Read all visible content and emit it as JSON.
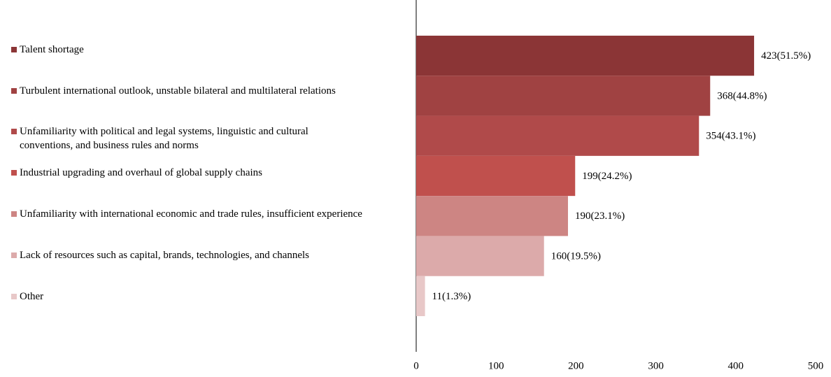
{
  "chart_data": {
    "type": "bar",
    "orientation": "horizontal",
    "categories": [
      "Talent shortage",
      "Turbulent international outlook, unstable bilateral and multilateral relations",
      "Unfamiliarity with political and legal systems, linguistic and cultural conventions, and business rules and norms",
      "Industrial upgrading and overhaul of global supply chains",
      "Unfamiliarity with international economic and trade rules, insufficient experience",
      "Lack of resources such as capital, brands, technologies, and channels",
      "Other"
    ],
    "values": [
      423,
      368,
      354,
      199,
      190,
      160,
      11
    ],
    "value_labels": [
      "423(51.5%)",
      "368(44.8%)",
      "354(43.1%)",
      "199(24.2%)",
      "190(23.1%)",
      "160(19.5%)",
      "11(1.3%)"
    ],
    "colors": [
      "#8b3536",
      "#a04242",
      "#b04a4a",
      "#c0504d",
      "#cd8583",
      "#dcaaaa",
      "#e8c8c8"
    ],
    "xlim": [
      0,
      500
    ],
    "xticks": [
      0,
      100,
      200,
      300,
      400,
      500
    ],
    "grid": false
  }
}
